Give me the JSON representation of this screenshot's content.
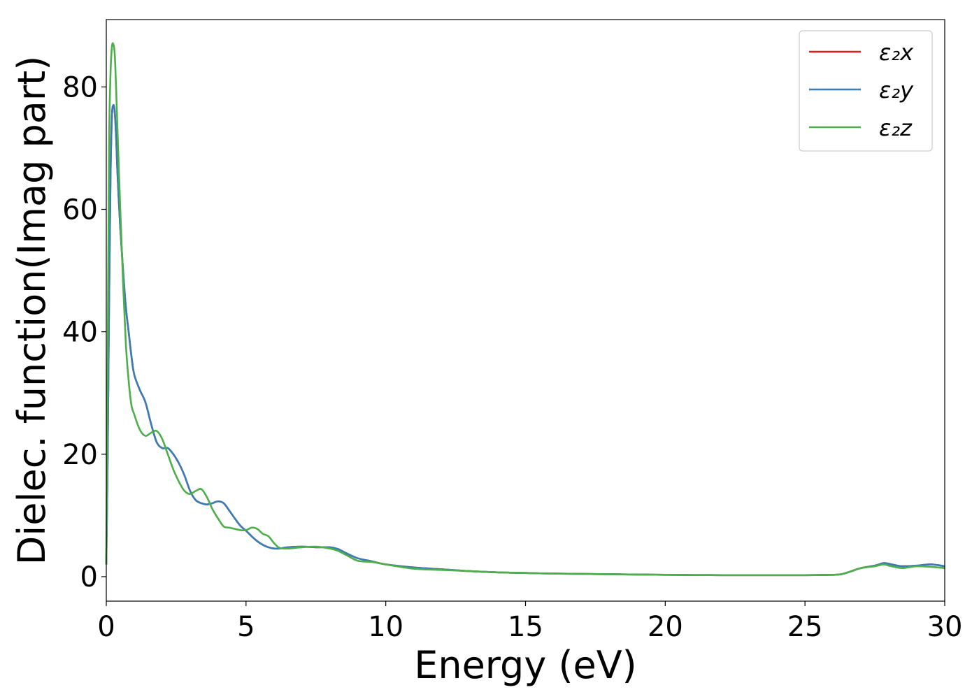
{
  "chart_data": {
    "type": "line",
    "title": "",
    "xlabel": "Energy (eV)",
    "ylabel": "Dielec. function(Imag part)",
    "xlim": [
      0,
      30
    ],
    "ylim": [
      -4,
      91
    ],
    "xticks": [
      0,
      5,
      10,
      15,
      20,
      25,
      30
    ],
    "yticks": [
      0,
      20,
      40,
      60,
      80
    ],
    "grid": false,
    "legend_position": "top-right",
    "series": [
      {
        "name": "ε₂x",
        "color": "#e41a1c",
        "x": [
          0,
          0.05,
          0.1,
          0.15,
          0.2,
          0.25,
          0.3,
          0.35,
          0.4,
          0.5,
          0.6,
          0.7,
          0.8,
          0.9,
          1.0,
          1.2,
          1.4,
          1.6,
          1.8,
          2.0,
          2.2,
          2.4,
          2.6,
          2.8,
          3.0,
          3.2,
          3.4,
          3.6,
          3.8,
          4.0,
          4.2,
          4.4,
          4.6,
          4.8,
          5.0,
          5.2,
          5.4,
          5.6,
          5.8,
          6.0,
          6.2,
          6.5,
          7.0,
          7.5,
          8.0,
          8.3,
          8.6,
          9.0,
          9.5,
          10.0,
          11.0,
          12.0,
          13.0,
          14.0,
          15.0,
          16.0,
          18.0,
          20.0,
          22.0,
          24.0,
          25.0,
          26.0,
          26.3,
          26.6,
          27.0,
          27.5,
          27.8,
          28.0,
          28.2,
          28.5,
          29.0,
          29.5,
          30.0
        ],
        "values": [
          2,
          20,
          45,
          65,
          75,
          77,
          76,
          72,
          66,
          57,
          50,
          44,
          40,
          36,
          33,
          30.5,
          28.5,
          25,
          22,
          21,
          21,
          20,
          18.5,
          16.5,
          14,
          12.5,
          12,
          11.8,
          12,
          12.3,
          12,
          10.8,
          9.5,
          8.3,
          7.5,
          6.6,
          5.8,
          5.2,
          4.8,
          4.6,
          4.6,
          4.8,
          4.9,
          4.8,
          4.8,
          4.5,
          3.8,
          3.0,
          2.5,
          2.0,
          1.5,
          1.2,
          0.9,
          0.7,
          0.6,
          0.5,
          0.4,
          0.3,
          0.25,
          0.25,
          0.25,
          0.3,
          0.4,
          0.8,
          1.4,
          1.8,
          2.2,
          2.1,
          1.9,
          1.7,
          1.8,
          2.0,
          1.7
        ]
      },
      {
        "name": "ε₂y",
        "color": "#377eb8",
        "x": [
          0,
          0.05,
          0.1,
          0.15,
          0.2,
          0.25,
          0.3,
          0.35,
          0.4,
          0.5,
          0.6,
          0.7,
          0.8,
          0.9,
          1.0,
          1.2,
          1.4,
          1.6,
          1.8,
          2.0,
          2.2,
          2.4,
          2.6,
          2.8,
          3.0,
          3.2,
          3.4,
          3.6,
          3.8,
          4.0,
          4.2,
          4.4,
          4.6,
          4.8,
          5.0,
          5.2,
          5.4,
          5.6,
          5.8,
          6.0,
          6.2,
          6.5,
          7.0,
          7.5,
          8.0,
          8.3,
          8.6,
          9.0,
          9.5,
          10.0,
          11.0,
          12.0,
          13.0,
          14.0,
          15.0,
          16.0,
          18.0,
          20.0,
          22.0,
          24.0,
          25.0,
          26.0,
          26.3,
          26.6,
          27.0,
          27.5,
          27.8,
          28.0,
          28.2,
          28.5,
          29.0,
          29.5,
          30.0
        ],
        "values": [
          2,
          20,
          45,
          65,
          75,
          77,
          76,
          72,
          66,
          57,
          50,
          44,
          40,
          36,
          33,
          30.5,
          28.5,
          25,
          22,
          21,
          21,
          20,
          18.5,
          16.5,
          14,
          12.5,
          12,
          11.8,
          12,
          12.3,
          12,
          10.8,
          9.5,
          8.3,
          7.5,
          6.6,
          5.8,
          5.2,
          4.8,
          4.6,
          4.6,
          4.8,
          4.9,
          4.8,
          4.8,
          4.5,
          3.8,
          3.0,
          2.5,
          2.0,
          1.5,
          1.2,
          0.9,
          0.7,
          0.6,
          0.5,
          0.4,
          0.3,
          0.25,
          0.25,
          0.25,
          0.3,
          0.4,
          0.8,
          1.4,
          1.8,
          2.2,
          2.1,
          1.9,
          1.7,
          1.8,
          2.0,
          1.7
        ]
      },
      {
        "name": "ε₂z",
        "color": "#4daf4a",
        "x": [
          0,
          0.05,
          0.1,
          0.15,
          0.2,
          0.25,
          0.3,
          0.35,
          0.4,
          0.5,
          0.6,
          0.7,
          0.8,
          0.9,
          1.0,
          1.2,
          1.4,
          1.6,
          1.8,
          2.0,
          2.2,
          2.4,
          2.6,
          2.8,
          3.0,
          3.2,
          3.4,
          3.6,
          3.8,
          4.0,
          4.2,
          4.4,
          4.6,
          4.8,
          5.0,
          5.2,
          5.4,
          5.6,
          5.8,
          6.0,
          6.2,
          6.5,
          7.0,
          7.5,
          8.0,
          8.3,
          8.6,
          9.0,
          9.5,
          10.0,
          11.0,
          12.0,
          13.0,
          14.0,
          15.0,
          16.0,
          18.0,
          20.0,
          22.0,
          24.0,
          25.0,
          26.0,
          26.3,
          26.6,
          27.0,
          27.5,
          27.8,
          28.0,
          28.2,
          28.5,
          29.0,
          29.5,
          30.0
        ],
        "values": [
          2,
          35,
          70,
          82,
          86.5,
          87,
          85.5,
          80,
          73,
          60,
          48,
          38,
          32,
          28,
          26.5,
          24,
          23,
          23.5,
          23.8,
          22.5,
          20,
          17.5,
          15.5,
          14,
          13.5,
          14,
          14.3,
          13,
          11,
          9.5,
          8.2,
          8.0,
          7.8,
          7.6,
          7.6,
          8.0,
          7.8,
          7.0,
          6.6,
          5.5,
          4.7,
          4.6,
          4.8,
          4.9,
          4.6,
          4.2,
          3.5,
          2.6,
          2.4,
          2.0,
          1.3,
          1.1,
          0.9,
          0.7,
          0.6,
          0.5,
          0.4,
          0.3,
          0.25,
          0.25,
          0.25,
          0.3,
          0.4,
          0.8,
          1.4,
          1.7,
          2.0,
          1.8,
          1.6,
          1.4,
          1.7,
          1.6,
          1.4
        ]
      }
    ]
  }
}
